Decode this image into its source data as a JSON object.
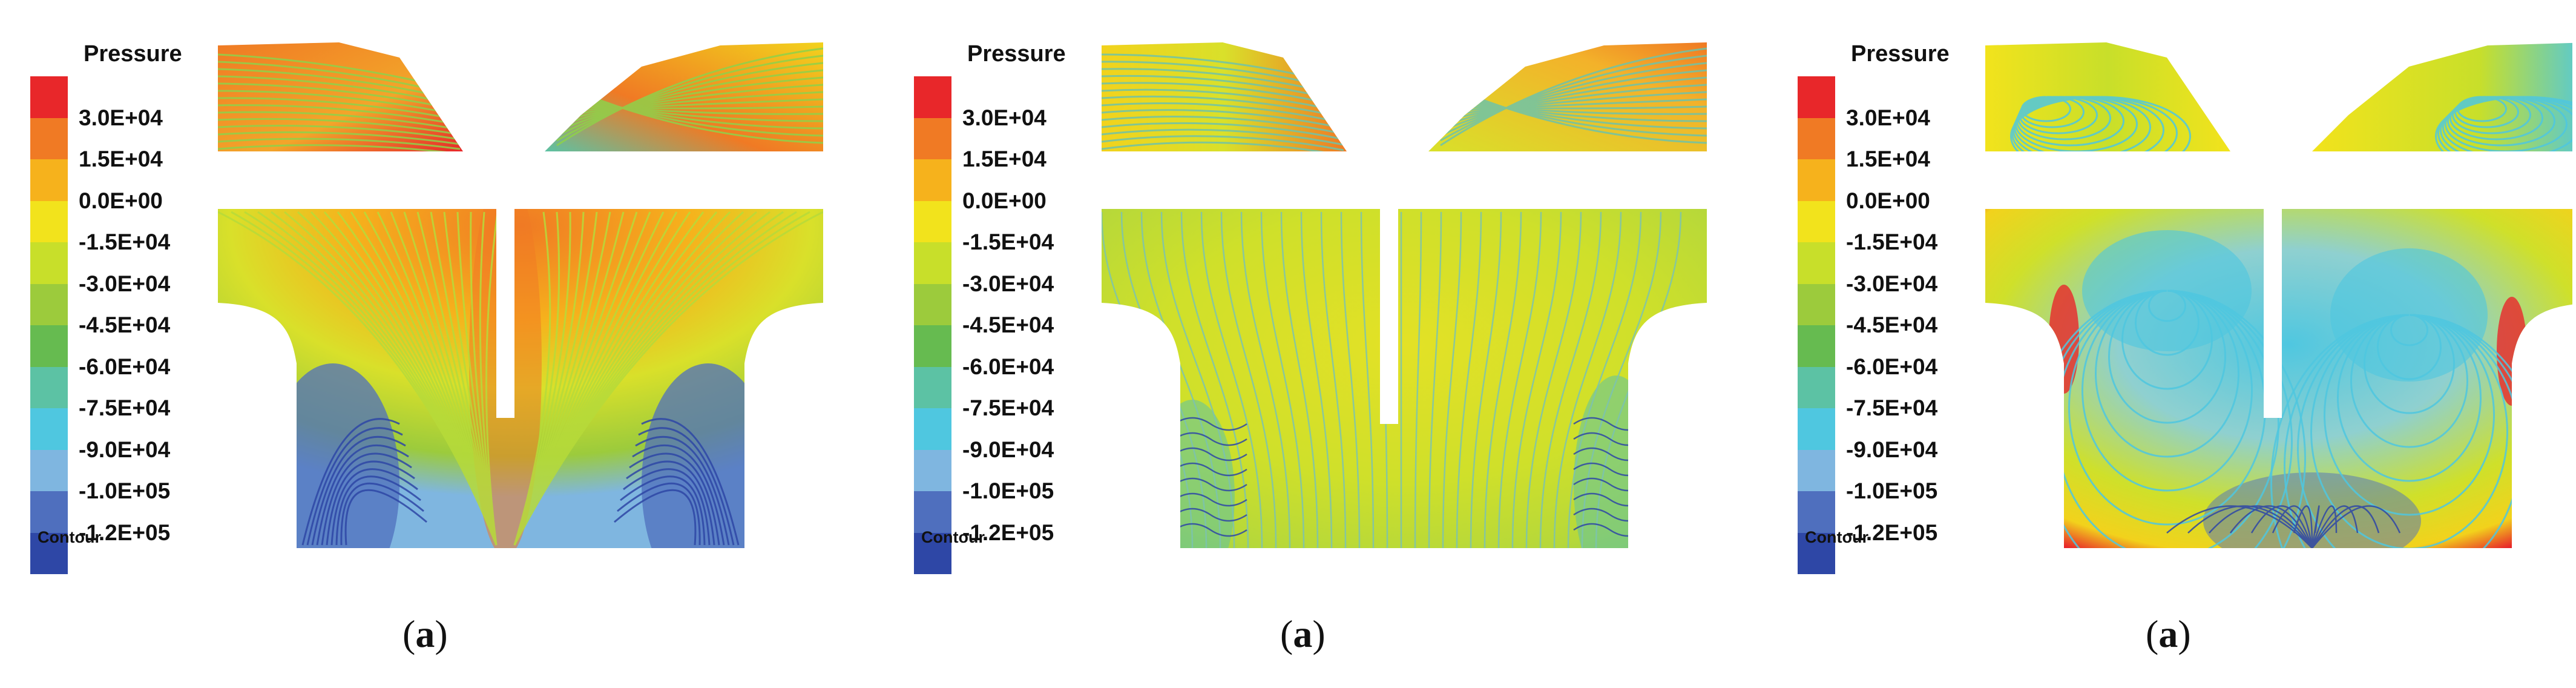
{
  "legend": {
    "title": "Pressure",
    "footer": "Contour",
    "ticks": [
      "3.0E+04",
      "1.5E+04",
      "0.0E+00",
      "-1.5E+04",
      "-3.0E+04",
      "-4.5E+04",
      "-6.0E+04",
      "-7.5E+04",
      "-9.0E+04",
      "-1.0E+05",
      "-1.2E+05"
    ],
    "colors": [
      "#e8272a",
      "#f07a24",
      "#f6b21c",
      "#f2e31c",
      "#c8df2a",
      "#9ccb3c",
      "#66bb50",
      "#5cc2a4",
      "#4fc7e0",
      "#7fb6e0",
      "#4f6fbe",
      "#2e47a6"
    ]
  },
  "panels": [
    {
      "caption_label": "a",
      "variant": "a"
    },
    {
      "caption_label": "a",
      "variant": "b"
    },
    {
      "caption_label": "a",
      "variant": "c"
    }
  ]
}
